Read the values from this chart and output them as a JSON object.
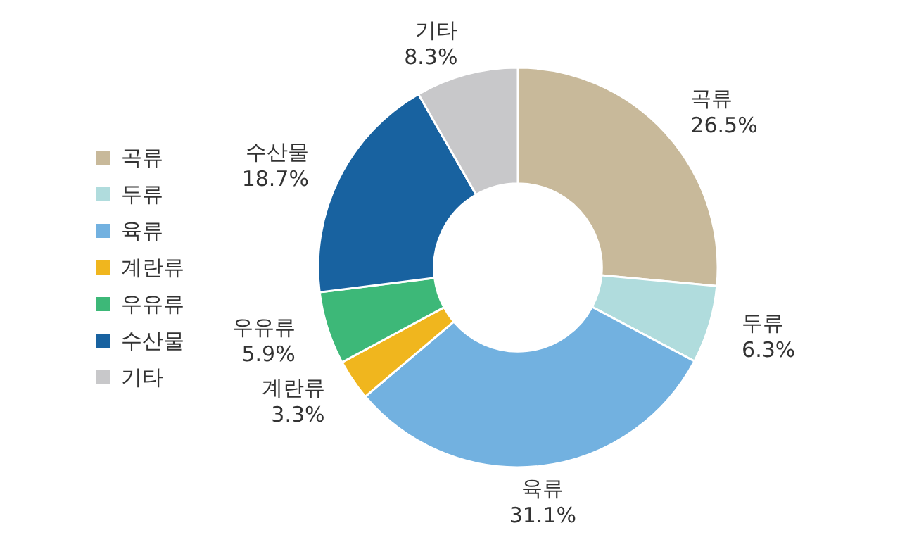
{
  "chart_data": {
    "type": "donut",
    "categories": [
      "곡류",
      "두류",
      "육류",
      "계란류",
      "우유류",
      "수산물",
      "기타"
    ],
    "values": [
      26.5,
      6.3,
      31.1,
      3.3,
      5.9,
      18.7,
      8.3
    ],
    "colors": [
      "#c8b99a",
      "#b0dcdd",
      "#72b1e0",
      "#f0b61e",
      "#3db878",
      "#1862a0",
      "#c8c8ca"
    ],
    "value_labels": [
      "26.5%",
      "6.3%",
      "31.1%",
      "3.3%",
      "5.9%",
      "18.7%",
      "8.3%"
    ],
    "legend": "left"
  }
}
